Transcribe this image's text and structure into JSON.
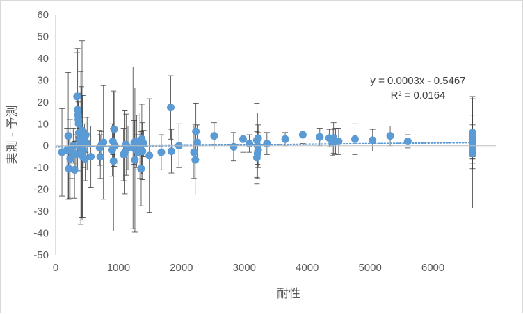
{
  "chart_data": {
    "type": "scatter",
    "title": "",
    "xlabel": "耐性",
    "ylabel": "実測 - 予測",
    "xlim": [
      0,
      7000
    ],
    "ylim": [
      -50,
      60
    ],
    "x_ticks": [
      "0",
      "1000",
      "2000",
      "3000",
      "4000",
      "5000",
      "6000"
    ],
    "y_ticks": [
      "-50",
      "-40",
      "-30",
      "-20",
      "-10",
      "0",
      "10",
      "20",
      "30",
      "40",
      "50",
      "60"
    ],
    "grid": false,
    "legend": "none",
    "colors": {
      "marker": "#5b9bd5",
      "trendline": "#5b9bd5",
      "error_bar": "#404040",
      "axis_text": "#595959"
    },
    "trendline": {
      "type": "linear",
      "slope": 0.0003,
      "intercept": -0.5467,
      "equation_label": "y = 0.0003x - 0.5467",
      "r2_label": "R² = 0.0164"
    },
    "points": [
      {
        "x": 100,
        "y": -3,
        "err": 20
      },
      {
        "x": 180,
        "y": -2,
        "err": 10
      },
      {
        "x": 200,
        "y": 4.5,
        "err": 29
      },
      {
        "x": 210,
        "y": -10.5,
        "err": 14
      },
      {
        "x": 230,
        "y": -6,
        "err": 18
      },
      {
        "x": 260,
        "y": -3,
        "err": 12
      },
      {
        "x": 280,
        "y": 0,
        "err": 8
      },
      {
        "x": 300,
        "y": -11,
        "err": 13
      },
      {
        "x": 320,
        "y": -4,
        "err": 9
      },
      {
        "x": 340,
        "y": 22.5,
        "err": 20
      },
      {
        "x": 350,
        "y": 16.5,
        "err": 28
      },
      {
        "x": 355,
        "y": 14,
        "err": 10
      },
      {
        "x": 360,
        "y": 12,
        "err": 8
      },
      {
        "x": 365,
        "y": 10,
        "err": 7
      },
      {
        "x": 370,
        "y": 6,
        "err": 6
      },
      {
        "x": 380,
        "y": 3,
        "err": 5
      },
      {
        "x": 390,
        "y": 1,
        "err": 4
      },
      {
        "x": 400,
        "y": -1,
        "err": 35
      },
      {
        "x": 410,
        "y": -3,
        "err": 30
      },
      {
        "x": 420,
        "y": 7,
        "err": 41
      },
      {
        "x": 430,
        "y": -5,
        "err": 28
      },
      {
        "x": 440,
        "y": -2,
        "err": 8
      },
      {
        "x": 450,
        "y": 2,
        "err": 5
      },
      {
        "x": 460,
        "y": 4,
        "err": 6
      },
      {
        "x": 470,
        "y": -6,
        "err": 10
      },
      {
        "x": 480,
        "y": 5,
        "err": 8
      },
      {
        "x": 500,
        "y": 1,
        "err": 12
      },
      {
        "x": 560,
        "y": -5,
        "err": 14
      },
      {
        "x": 700,
        "y": -1,
        "err": 8
      },
      {
        "x": 710,
        "y": -5,
        "err": 10
      },
      {
        "x": 730,
        "y": 0.5,
        "err": 6
      },
      {
        "x": 760,
        "y": 1.5,
        "err": 26
      },
      {
        "x": 900,
        "y": -2,
        "err": 12
      },
      {
        "x": 910,
        "y": 2,
        "err": 6
      },
      {
        "x": 920,
        "y": -7,
        "err": 32
      },
      {
        "x": 930,
        "y": 7.5,
        "err": 17
      },
      {
        "x": 940,
        "y": 0,
        "err": 8
      },
      {
        "x": 1080,
        "y": -4,
        "err": 12
      },
      {
        "x": 1100,
        "y": -3,
        "err": 19
      },
      {
        "x": 1120,
        "y": 0.5,
        "err": 14
      },
      {
        "x": 1150,
        "y": -1,
        "err": 10
      },
      {
        "x": 1230,
        "y": -1,
        "err": 37
      },
      {
        "x": 1250,
        "y": 1.5,
        "err": 10
      },
      {
        "x": 1260,
        "y": -6.5,
        "err": 33
      },
      {
        "x": 1290,
        "y": 2,
        "err": 12
      },
      {
        "x": 1310,
        "y": -3,
        "err": 8
      },
      {
        "x": 1340,
        "y": 0,
        "err": 15
      },
      {
        "x": 1360,
        "y": -10.5,
        "err": 17
      },
      {
        "x": 1370,
        "y": 3,
        "err": 16
      },
      {
        "x": 1380,
        "y": -2.5,
        "err": 13
      },
      {
        "x": 1400,
        "y": 1,
        "err": 6
      },
      {
        "x": 1490,
        "y": -4.5,
        "err": 26
      },
      {
        "x": 1680,
        "y": -3,
        "err": 8
      },
      {
        "x": 1830,
        "y": 17.5,
        "err": 14.5
      },
      {
        "x": 1840,
        "y": -2.5,
        "err": 10
      },
      {
        "x": 1960,
        "y": 0,
        "err": 10
      },
      {
        "x": 2200,
        "y": -3,
        "err": 12
      },
      {
        "x": 2220,
        "y": -6.5,
        "err": 16
      },
      {
        "x": 2230,
        "y": 6.5,
        "err": 13
      },
      {
        "x": 2250,
        "y": 1.5,
        "err": 8
      },
      {
        "x": 2520,
        "y": 4.5,
        "err": 6
      },
      {
        "x": 2830,
        "y": -0.5,
        "err": 6.5
      },
      {
        "x": 2980,
        "y": 3,
        "err": 6
      },
      {
        "x": 3080,
        "y": 1,
        "err": 4
      },
      {
        "x": 3200,
        "y": 2.5,
        "err": 17
      },
      {
        "x": 3210,
        "y": 0,
        "err": 15
      },
      {
        "x": 3220,
        "y": -2,
        "err": 8
      },
      {
        "x": 3200,
        "y": -5.5,
        "err": 12
      },
      {
        "x": 3210,
        "y": -3.5,
        "err": 5
      },
      {
        "x": 3220,
        "y": 3.5,
        "err": 6
      },
      {
        "x": 3360,
        "y": 1,
        "err": 5
      },
      {
        "x": 3650,
        "y": 3,
        "err": 3
      },
      {
        "x": 3930,
        "y": 5,
        "err": 4
      },
      {
        "x": 4200,
        "y": 4,
        "err": 4
      },
      {
        "x": 4350,
        "y": 3.5,
        "err": 4
      },
      {
        "x": 4400,
        "y": 1.5,
        "err": 6
      },
      {
        "x": 4420,
        "y": 3.5,
        "err": 7
      },
      {
        "x": 4450,
        "y": 2,
        "err": 6
      },
      {
        "x": 4500,
        "y": 2,
        "err": 6
      },
      {
        "x": 4760,
        "y": 3,
        "err": 7
      },
      {
        "x": 5040,
        "y": 2.5,
        "err": 5
      },
      {
        "x": 5320,
        "y": 4.5,
        "err": 4.5
      },
      {
        "x": 5600,
        "y": 2,
        "err": 3
      },
      {
        "x": 6630,
        "y": 6,
        "err": 16.5
      },
      {
        "x": 6630,
        "y": 4,
        "err": 10
      },
      {
        "x": 6630,
        "y": 2.5,
        "err": 7
      },
      {
        "x": 6630,
        "y": 1,
        "err": 6
      },
      {
        "x": 6630,
        "y": -0.5,
        "err": 6
      },
      {
        "x": 6630,
        "y": -2,
        "err": 6
      },
      {
        "x": 6630,
        "y": -3.5,
        "err": 25
      }
    ]
  }
}
